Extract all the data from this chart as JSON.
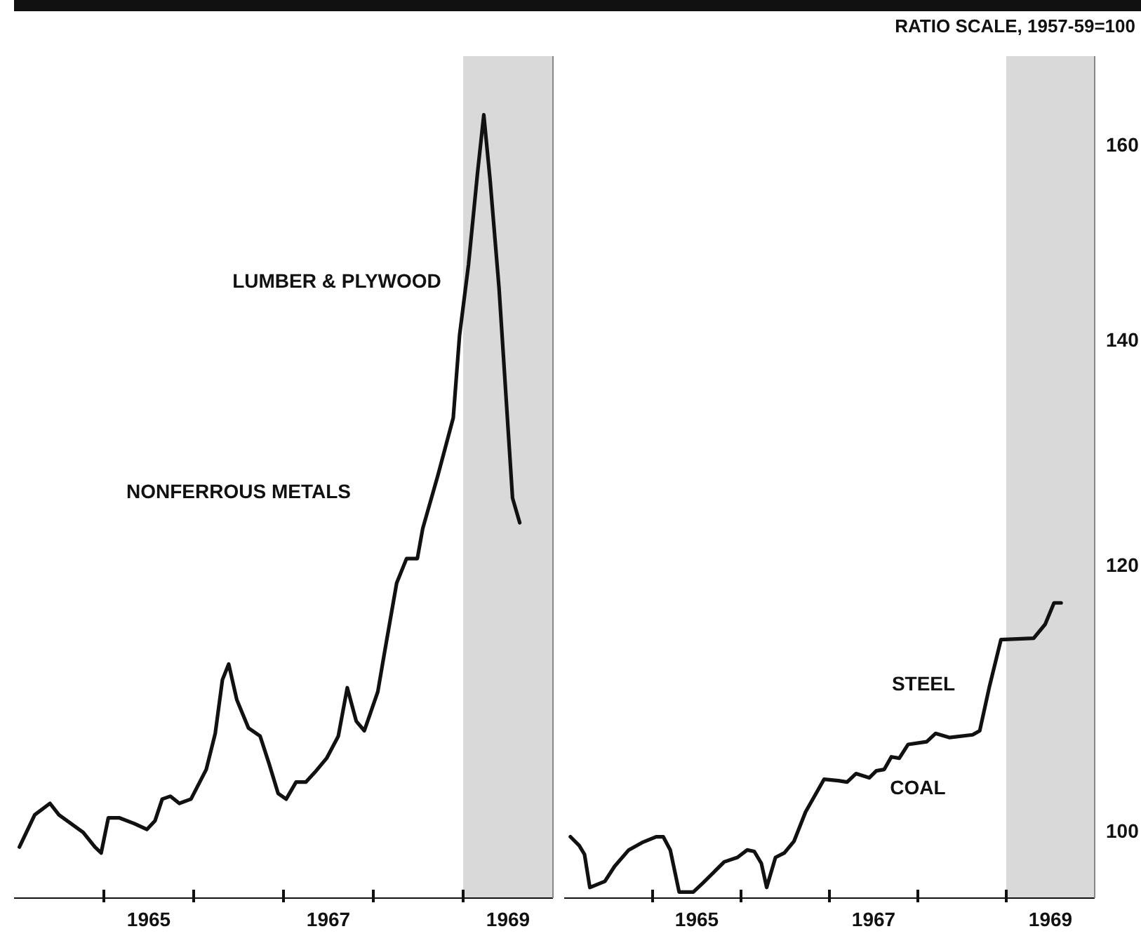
{
  "chart_data": [
    {
      "type": "line",
      "x": [
        1964.06,
        1964.23,
        1964.4,
        1964.5,
        1964.77,
        1964.9,
        1964.97,
        1965.05,
        1965.17,
        1965.34,
        1965.48,
        1965.57,
        1965.65,
        1965.74,
        1965.84,
        1965.97,
        1966.14,
        1966.24,
        1966.32,
        1966.39,
        1966.48,
        1966.61,
        1966.74,
        1966.84,
        1966.94,
        1967.03,
        1967.14,
        1967.25,
        1967.35,
        1967.48,
        1967.61,
        1967.71,
        1967.81,
        1967.9,
        1968.05,
        1968.12,
        1968.26,
        1968.37,
        1968.49,
        1968.55,
        1968.72,
        1968.89,
        1968.96,
        1969.06,
        1969.16,
        1969.23,
        1969.3,
        1969.4,
        1969.46,
        1969.55,
        1969.63
      ],
      "series": [
        {
          "color": "#111111",
          "values": [
            98.9,
            101.1,
            101.9,
            101.1,
            99.9,
            98.9,
            98.5,
            100.9,
            100.9,
            100.5,
            100.1,
            100.7,
            102.2,
            102.4,
            101.9,
            102.2,
            104.3,
            106.9,
            110.9,
            112.1,
            109.4,
            107.3,
            106.7,
            104.7,
            102.6,
            102.2,
            103.4,
            103.4,
            104.1,
            105.1,
            106.7,
            110.3,
            107.8,
            107.1,
            110.0,
            112.8,
            118.5,
            120.5,
            120.5,
            123.0,
            127.6,
            132.7,
            140.4,
            147.4,
            156.9,
            163.3,
            156.2,
            145.0,
            136.9,
            125.6,
            123.5
          ]
        }
      ],
      "xlim": [
        1964,
        1970
      ],
      "xticks": [
        {
          "value": 1965,
          "label": null
        },
        {
          "value": 1965.5,
          "label": "1965"
        },
        {
          "value": 1966,
          "label": null
        },
        {
          "value": 1967,
          "label": null
        },
        {
          "value": 1967.5,
          "label": "1967"
        },
        {
          "value": 1968,
          "label": null
        },
        {
          "value": 1969,
          "label": null
        },
        {
          "value": 1969.5,
          "label": "1969"
        }
      ],
      "ylim": [
        95.5,
        170
      ],
      "yticks": [
        100,
        120,
        140,
        160
      ],
      "log": true,
      "tick_labels": "x",
      "bands": [
        {
          "axis": "x",
          "from": 1969,
          "to": 1970,
          "color": "#cfcfcf"
        }
      ],
      "annotations": [
        "LUMBER & PLYWOOD",
        "NONFERROUS METALS"
      ]
    },
    {
      "type": "line",
      "x": [
        1964.07,
        1964.17,
        1964.23,
        1964.29,
        1964.46,
        1964.57,
        1964.73,
        1964.88,
        1965.04,
        1965.12,
        1965.2,
        1965.3,
        1965.46,
        1965.57,
        1965.81,
        1965.96,
        1966.07,
        1966.15,
        1966.23,
        1966.29,
        1966.39,
        1966.49,
        1966.6,
        1966.73,
        1966.94,
        1967.1,
        1967.2,
        1967.3,
        1967.45,
        1967.53,
        1967.62,
        1967.7,
        1967.79,
        1967.89,
        1968.1,
        1968.2,
        1968.36,
        1968.62,
        1968.7,
        1968.81,
        1968.94,
        1969.31,
        1969.44,
        1969.54,
        1969.62
      ],
      "series": [
        {
          "color": "#111111",
          "values": [
            99.6,
            99.0,
            98.4,
            96.2,
            96.6,
            97.6,
            98.7,
            99.2,
            99.6,
            99.6,
            98.7,
            95.9,
            95.9,
            96.5,
            97.9,
            98.2,
            98.7,
            98.6,
            97.8,
            96.2,
            98.2,
            98.5,
            99.3,
            101.3,
            103.6,
            103.5,
            103.4,
            104.0,
            103.7,
            104.2,
            104.3,
            105.2,
            105.1,
            106.1,
            106.3,
            106.9,
            106.6,
            106.8,
            107.1,
            110.4,
            114.0,
            114.1,
            115.2,
            116.9,
            116.9
          ]
        }
      ],
      "xlim": [
        1964,
        1970
      ],
      "xticks": [
        {
          "value": 1965,
          "label": null
        },
        {
          "value": 1965.5,
          "label": "1965"
        },
        {
          "value": 1966,
          "label": null
        },
        {
          "value": 1967,
          "label": null
        },
        {
          "value": 1967.5,
          "label": "1967"
        },
        {
          "value": 1968,
          "label": null
        },
        {
          "value": 1969,
          "label": null
        },
        {
          "value": 1969.5,
          "label": "1969"
        }
      ],
      "ylim": [
        95.5,
        170
      ],
      "yticks": [
        100,
        120,
        140,
        160
      ],
      "log": true,
      "ylabel": "RATIO SCALE, 1957-59=100",
      "bands": [
        {
          "axis": "x",
          "from": 1969,
          "to": 1970,
          "color": "#cfcfcf"
        }
      ],
      "annotations": [
        "STEEL",
        "COAL"
      ]
    }
  ]
}
